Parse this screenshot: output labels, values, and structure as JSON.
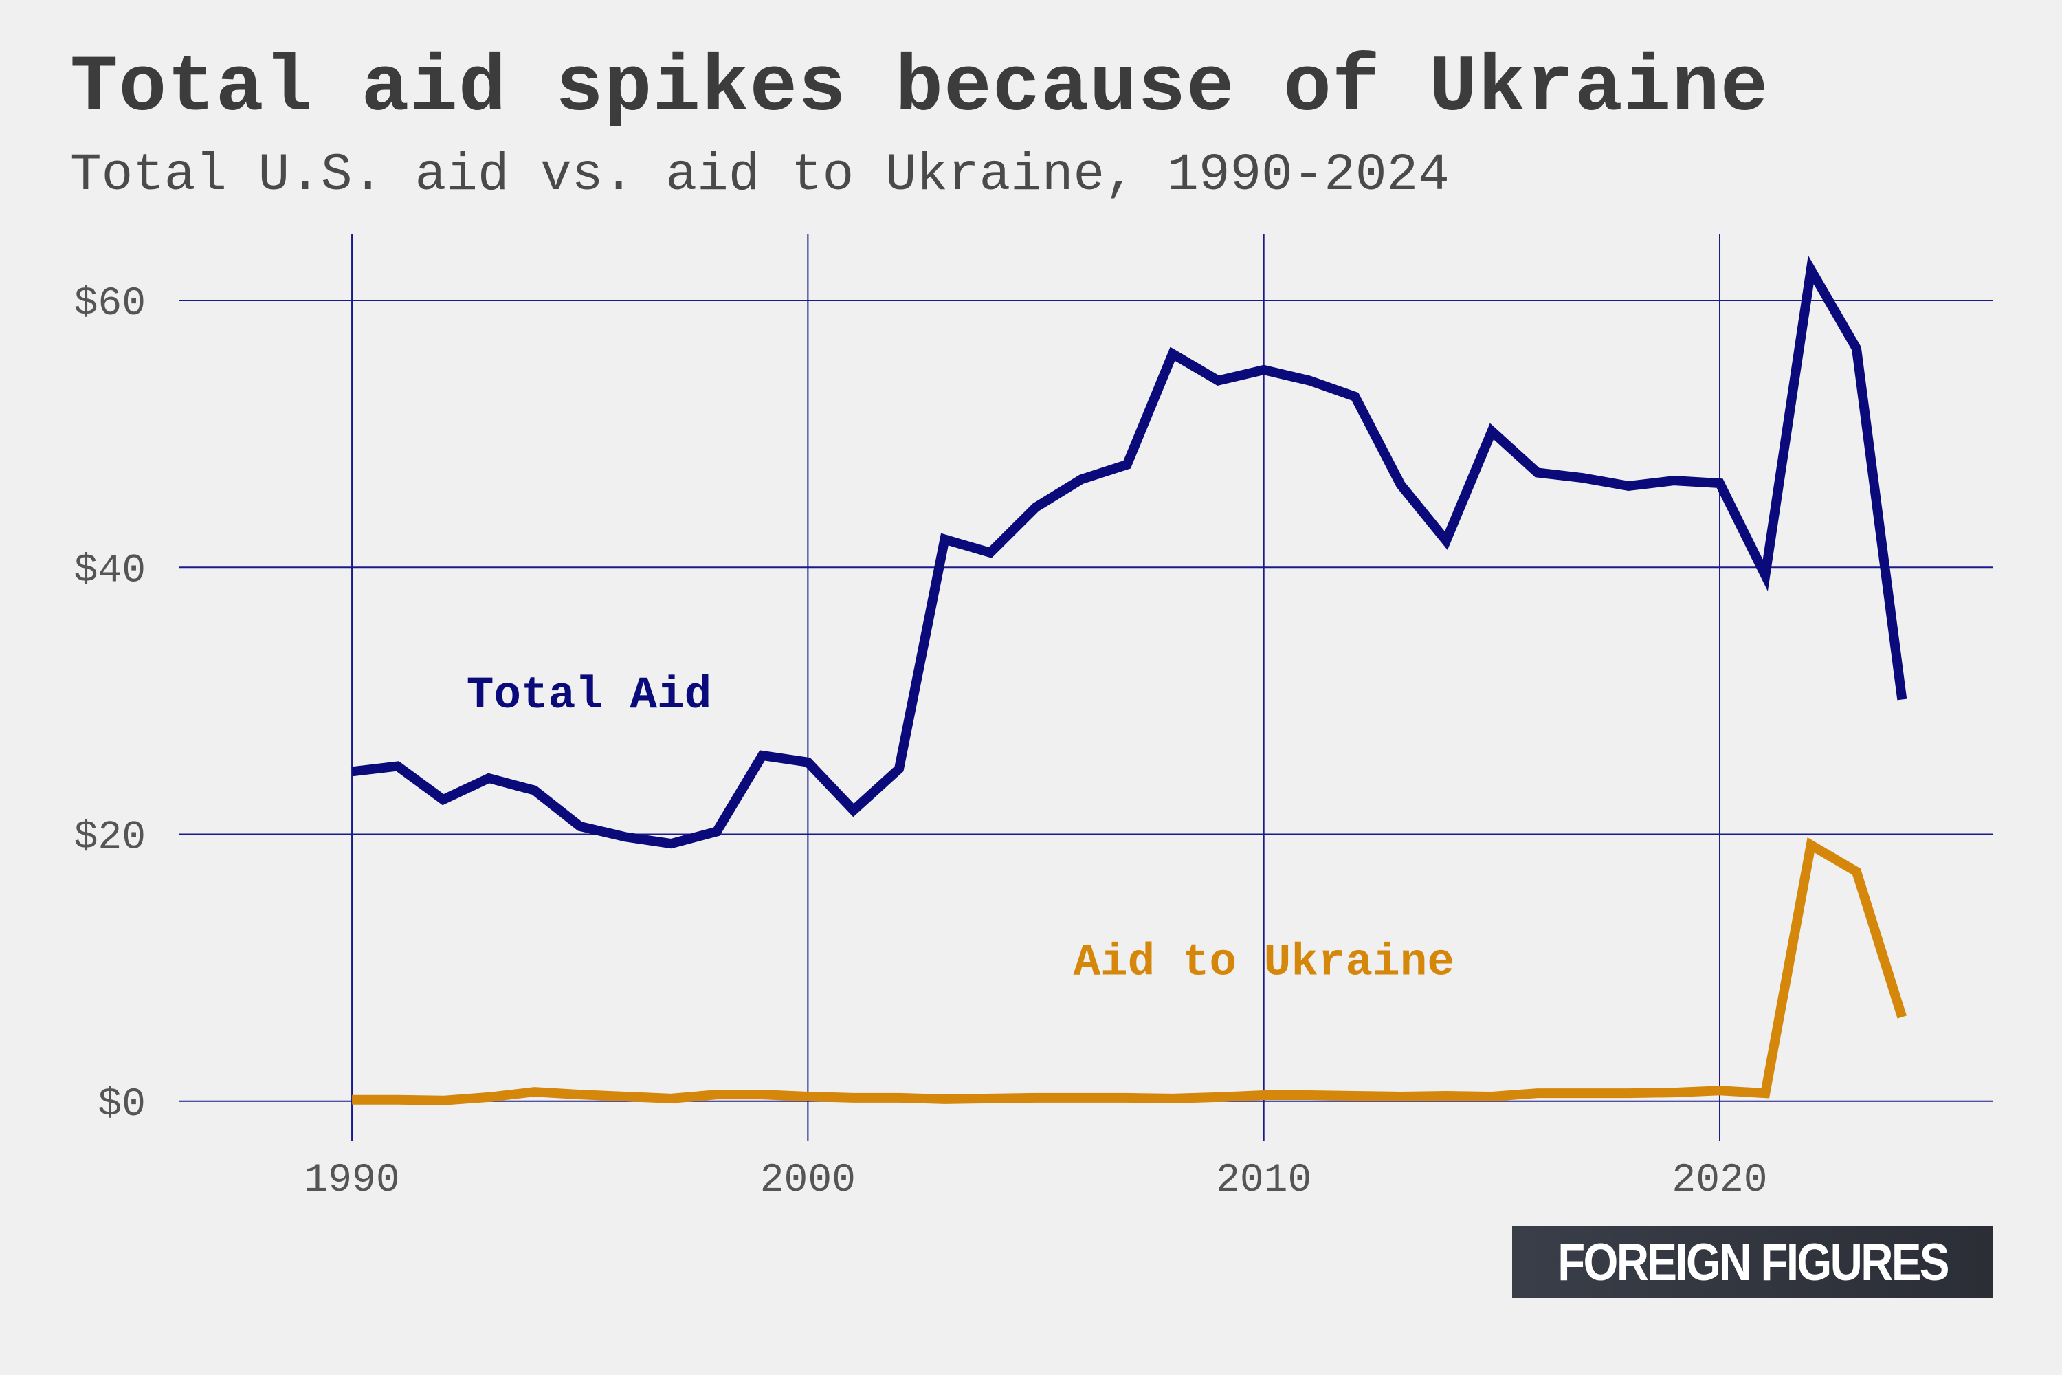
{
  "colors": {
    "background": "#f0f0f0",
    "grid": "#1a1a8c",
    "total_aid": "#0a0a7a",
    "aid_to_ukraine": "#d4870a",
    "logo_bg": "#33363f"
  },
  "logo": {
    "text": "FOREIGN FIGURES"
  },
  "chart_data": {
    "type": "line",
    "title": "Total aid spikes because of Ukraine",
    "subtitle": "Total U.S. aid vs. aid to Ukraine, 1990-2024",
    "xlabel": "",
    "ylabel": "",
    "xlim": [
      1986.2,
      2026
    ],
    "ylim": [
      -3,
      65
    ],
    "x_ticks": [
      1990,
      2000,
      2010,
      2020
    ],
    "y_ticks": [
      {
        "value": 0,
        "label": "$0"
      },
      {
        "value": 20,
        "label": "$20"
      },
      {
        "value": 40,
        "label": "$40"
      },
      {
        "value": 60,
        "label": "$60"
      }
    ],
    "grid": true,
    "x": [
      1990,
      1991,
      1992,
      1993,
      1994,
      1995,
      1996,
      1997,
      1998,
      1999,
      2000,
      2001,
      2002,
      2003,
      2004,
      2005,
      2006,
      2007,
      2008,
      2009,
      2010,
      2011,
      2012,
      2013,
      2014,
      2015,
      2016,
      2017,
      2018,
      2019,
      2020,
      2021,
      2022,
      2023,
      2024
    ],
    "series": [
      {
        "name": "Total Aid",
        "label_at": [
          1995.2,
          29.5
        ],
        "values": [
          24.7,
          25.1,
          22.6,
          24.2,
          23.3,
          20.6,
          19.8,
          19.3,
          20.2,
          25.9,
          25.4,
          21.8,
          24.9,
          42.1,
          41.1,
          44.5,
          46.6,
          47.7,
          56.0,
          54.0,
          54.8,
          54.0,
          52.8,
          46.2,
          42.0,
          50.2,
          47.1,
          46.7,
          46.1,
          46.5,
          46.3,
          39.4,
          62.3,
          56.4,
          30.1
        ]
      },
      {
        "name": "Aid to Ukraine",
        "label_at": [
          2010,
          9.5
        ],
        "values": [
          0.1,
          0.1,
          0.05,
          0.3,
          0.7,
          0.5,
          0.35,
          0.2,
          0.5,
          0.5,
          0.35,
          0.25,
          0.25,
          0.15,
          0.2,
          0.25,
          0.25,
          0.25,
          0.2,
          0.3,
          0.45,
          0.45,
          0.4,
          0.35,
          0.4,
          0.35,
          0.6,
          0.6,
          0.6,
          0.65,
          0.8,
          0.6,
          19.2,
          17.2,
          6.3
        ]
      }
    ]
  }
}
